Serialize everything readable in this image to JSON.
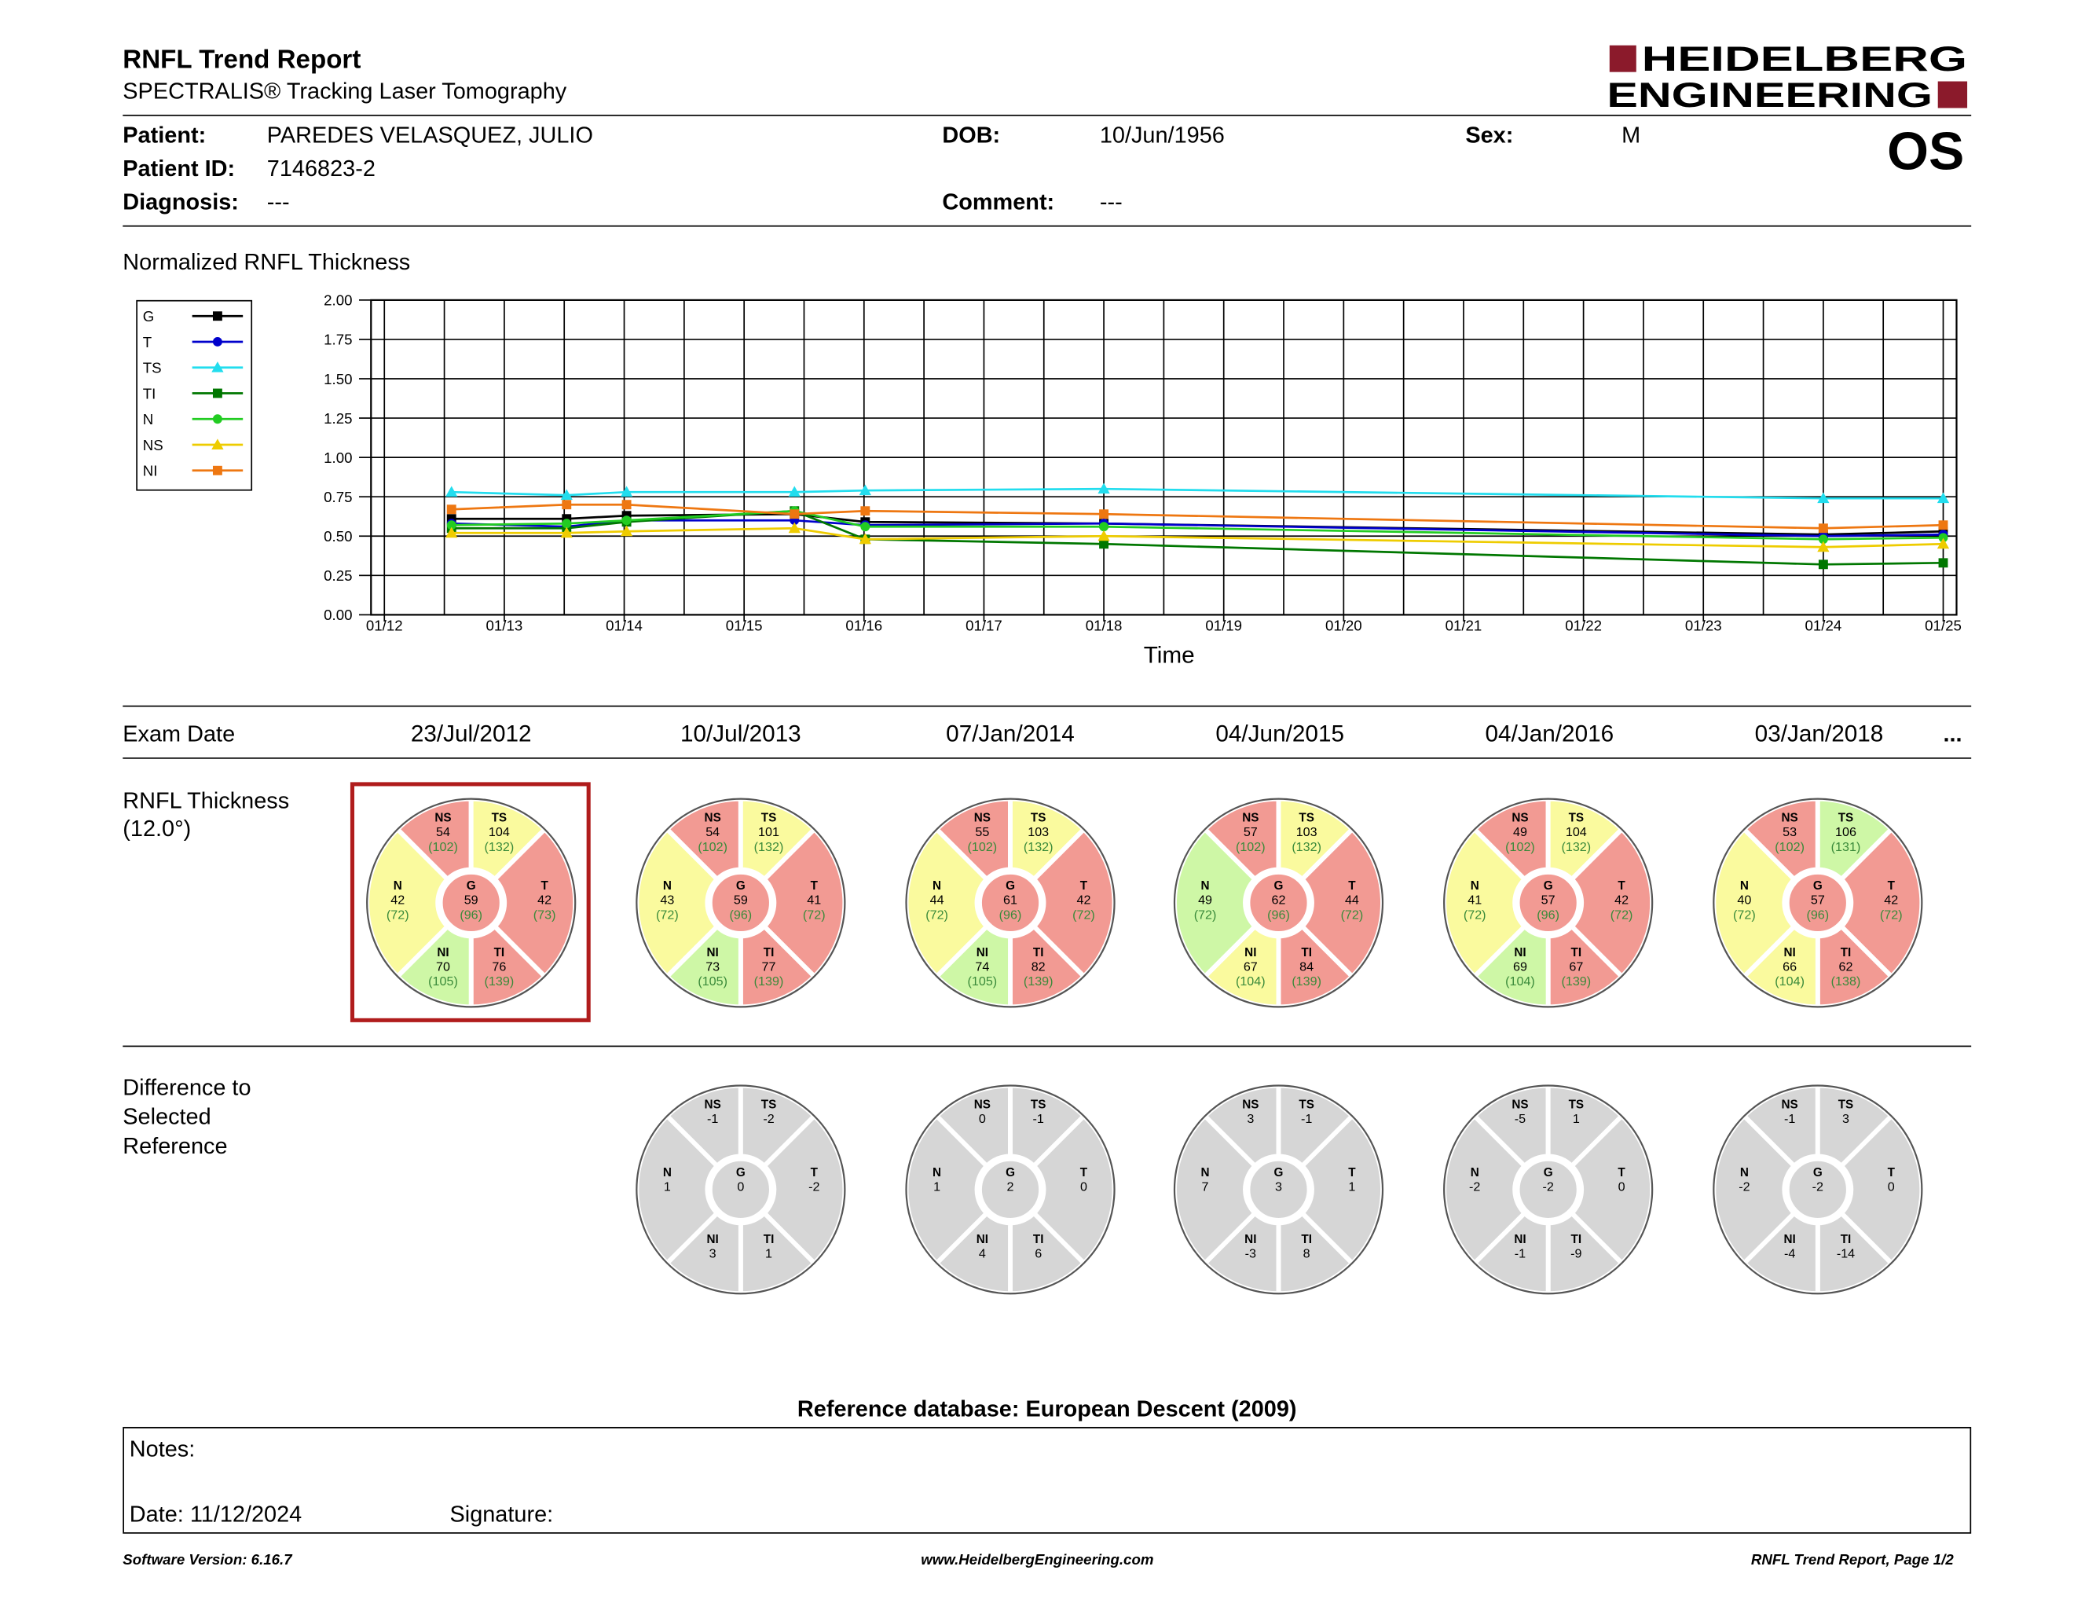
{
  "header": {
    "title": "RNFL Trend Report",
    "subtitle": "SPECTRALIS® Tracking Laser Tomography",
    "logo_line1": "HEIDELBERG",
    "logo_line2": "ENGINEERING",
    "eye": "OS",
    "brand_color": "#8b1a2b"
  },
  "patient": {
    "name_label": "Patient:",
    "name": "PAREDES VELASQUEZ, JULIO",
    "id_label": "Patient ID:",
    "id": "7146823-2",
    "diagnosis_label": "Diagnosis:",
    "diagnosis": "---",
    "dob_label": "DOB:",
    "dob": "10/Jun/1956",
    "comment_label": "Comment:",
    "comment": "---",
    "sex_label": "Sex:",
    "sex": "M"
  },
  "chart_data": {
    "type": "line",
    "title": "Normalized RNFL Thickness",
    "xlabel": "Time",
    "ylabel": "",
    "ylim": [
      0,
      2
    ],
    "yticks": [
      "2.00",
      "1.75",
      "1.50",
      "1.25",
      "1.00",
      "0.75",
      "0.50",
      "0.25",
      "0.00"
    ],
    "xticks": [
      "01/12",
      "01/13",
      "01/14",
      "01/15",
      "01/16",
      "01/17",
      "01/18",
      "01/19",
      "01/20",
      "01/21",
      "01/22",
      "01/23",
      "01/24",
      "01/25"
    ],
    "x": [
      "23/Jul/2012",
      "10/Jul/2013",
      "07/Jan/2014",
      "04/Jun/2015",
      "04/Jan/2016",
      "03/Jan/2018",
      "2024",
      "2025"
    ],
    "legend": "left",
    "grid": true,
    "series": [
      {
        "name": "G",
        "color": "#000000",
        "marker": "square",
        "values": [
          0.61,
          0.61,
          0.63,
          0.64,
          0.59,
          0.58,
          0.51,
          0.53
        ]
      },
      {
        "name": "T",
        "color": "#0000cc",
        "marker": "circle",
        "values": [
          0.58,
          0.56,
          0.6,
          0.6,
          0.57,
          0.58,
          0.5,
          0.51
        ]
      },
      {
        "name": "TS",
        "color": "#22ddee",
        "marker": "triangle",
        "values": [
          0.78,
          0.76,
          0.78,
          0.78,
          0.79,
          0.8,
          0.74,
          0.74
        ]
      },
      {
        "name": "TI",
        "color": "#007700",
        "marker": "square",
        "values": [
          0.55,
          0.55,
          0.59,
          0.66,
          0.48,
          0.45,
          0.32,
          0.33
        ]
      },
      {
        "name": "N",
        "color": "#22cc22",
        "marker": "circle",
        "values": [
          0.57,
          0.58,
          0.6,
          0.66,
          0.56,
          0.56,
          0.48,
          0.49
        ]
      },
      {
        "name": "NS",
        "color": "#eecc00",
        "marker": "triangle",
        "values": [
          0.52,
          0.52,
          0.53,
          0.55,
          0.48,
          0.5,
          0.43,
          0.45
        ]
      },
      {
        "name": "NI",
        "color": "#ee7711",
        "marker": "square",
        "values": [
          0.67,
          0.7,
          0.7,
          0.64,
          0.66,
          0.64,
          0.55,
          0.57
        ]
      }
    ]
  },
  "exams": {
    "label": "Exam Date",
    "dates": [
      "23/Jul/2012",
      "10/Jul/2013",
      "07/Jan/2014",
      "04/Jun/2015",
      "04/Jan/2016",
      "03/Jan/2018"
    ],
    "more": "...",
    "selected_index": 0
  },
  "thickness": {
    "label_line1": "RNFL Thickness",
    "label_line2": "(12.0°)",
    "colors": {
      "red": "#f29a93",
      "yellow": "#fafa9e",
      "green": "#cef7a6",
      "gray": "#d6d6d6",
      "ref_text": "#3a8a3a"
    },
    "discs": [
      {
        "NS": [
          "54",
          "102",
          "red"
        ],
        "TS": [
          "104",
          "132",
          "yellow"
        ],
        "N": [
          "42",
          "72",
          "yellow"
        ],
        "G": [
          "59",
          "96",
          "red"
        ],
        "T": [
          "42",
          "73",
          "red"
        ],
        "NI": [
          "70",
          "105",
          "green"
        ],
        "TI": [
          "76",
          "139",
          "red"
        ]
      },
      {
        "NS": [
          "54",
          "102",
          "red"
        ],
        "TS": [
          "101",
          "132",
          "yellow"
        ],
        "N": [
          "43",
          "72",
          "yellow"
        ],
        "G": [
          "59",
          "96",
          "red"
        ],
        "T": [
          "41",
          "72",
          "red"
        ],
        "NI": [
          "73",
          "105",
          "green"
        ],
        "TI": [
          "77",
          "139",
          "red"
        ]
      },
      {
        "NS": [
          "55",
          "102",
          "red"
        ],
        "TS": [
          "103",
          "132",
          "yellow"
        ],
        "N": [
          "44",
          "72",
          "yellow"
        ],
        "G": [
          "61",
          "96",
          "red"
        ],
        "T": [
          "42",
          "72",
          "red"
        ],
        "NI": [
          "74",
          "105",
          "green"
        ],
        "TI": [
          "82",
          "139",
          "red"
        ]
      },
      {
        "NS": [
          "57",
          "102",
          "red"
        ],
        "TS": [
          "103",
          "132",
          "yellow"
        ],
        "N": [
          "49",
          "72",
          "green"
        ],
        "G": [
          "62",
          "96",
          "red"
        ],
        "T": [
          "44",
          "72",
          "red"
        ],
        "NI": [
          "67",
          "104",
          "yellow"
        ],
        "TI": [
          "84",
          "139",
          "red"
        ]
      },
      {
        "NS": [
          "49",
          "102",
          "red"
        ],
        "TS": [
          "104",
          "132",
          "yellow"
        ],
        "N": [
          "41",
          "72",
          "yellow"
        ],
        "G": [
          "57",
          "96",
          "red"
        ],
        "T": [
          "42",
          "72",
          "red"
        ],
        "NI": [
          "69",
          "104",
          "green"
        ],
        "TI": [
          "67",
          "139",
          "red"
        ]
      },
      {
        "NS": [
          "53",
          "102",
          "red"
        ],
        "TS": [
          "106",
          "131",
          "green"
        ],
        "N": [
          "40",
          "72",
          "yellow"
        ],
        "G": [
          "57",
          "96",
          "red"
        ],
        "T": [
          "42",
          "72",
          "red"
        ],
        "NI": [
          "66",
          "104",
          "yellow"
        ],
        "TI": [
          "62",
          "138",
          "red"
        ]
      }
    ]
  },
  "difference": {
    "label_line1": "Difference to",
    "label_line2": "Selected",
    "label_line3": "Reference",
    "discs": [
      {
        "NS": "-1",
        "TS": "-2",
        "N": "1",
        "G": "0",
        "T": "-2",
        "NI": "3",
        "TI": "1"
      },
      {
        "NS": "0",
        "TS": "-1",
        "N": "1",
        "G": "2",
        "T": "0",
        "NI": "4",
        "TI": "6"
      },
      {
        "NS": "3",
        "TS": "-1",
        "N": "7",
        "G": "3",
        "T": "1",
        "NI": "-3",
        "TI": "8"
      },
      {
        "NS": "-5",
        "TS": "1",
        "N": "-2",
        "G": "-2",
        "T": "0",
        "NI": "-1",
        "TI": "-9"
      },
      {
        "NS": "-1",
        "TS": "3",
        "N": "-2",
        "G": "-2",
        "T": "0",
        "NI": "-4",
        "TI": "-14"
      }
    ]
  },
  "reference_db": "Reference database: European Descent (2009)",
  "notes": {
    "label": "Notes:",
    "date": "Date: 11/12/2024",
    "signature": "Signature:"
  },
  "footer": {
    "version": "Software Version: 6.16.7",
    "website": "www.HeidelbergEngineering.com",
    "page": "RNFL Trend Report, Page 1/2"
  }
}
